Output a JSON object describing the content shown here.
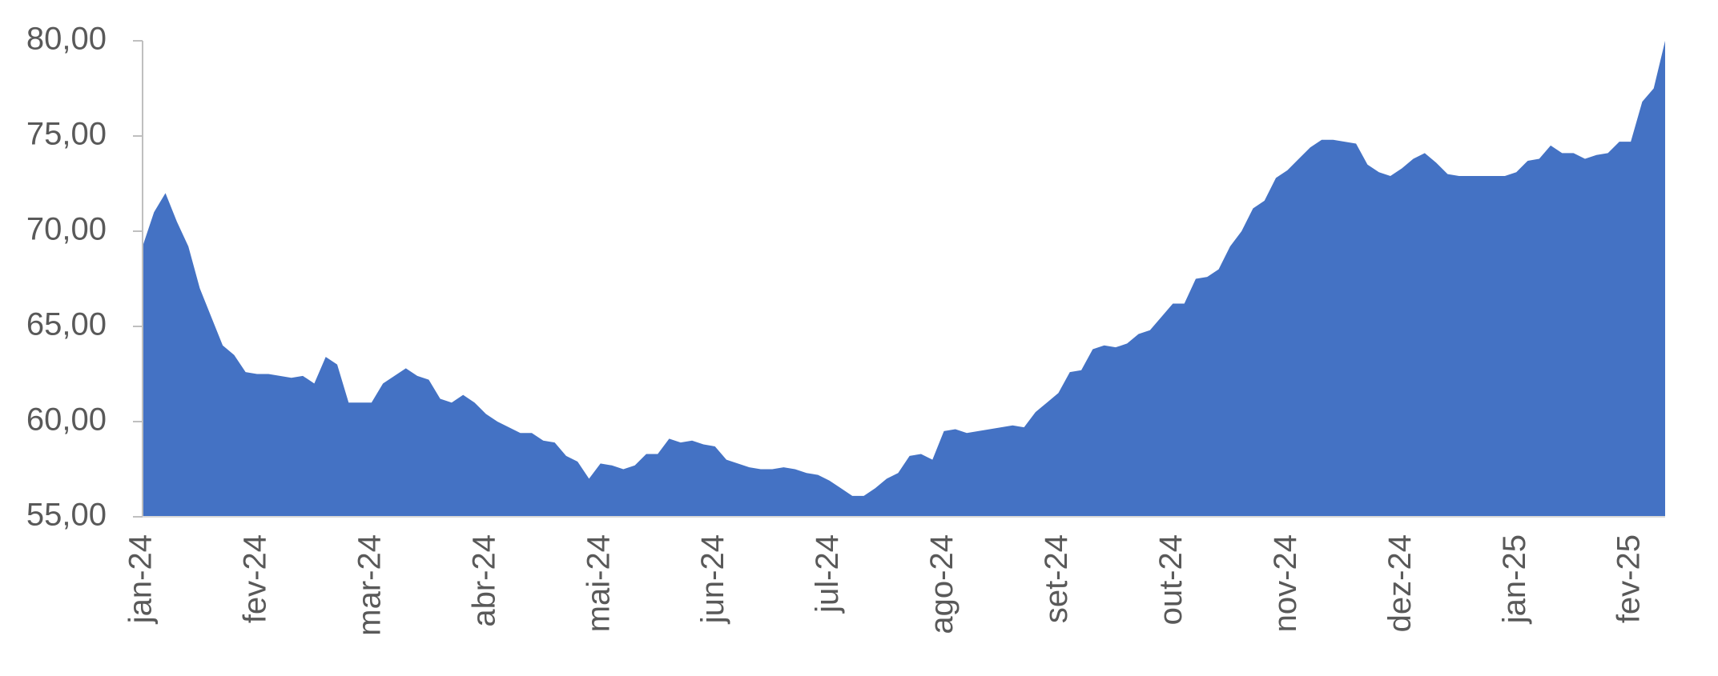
{
  "chart_data": {
    "type": "area",
    "color": "#4472c4",
    "categories": [
      "jan-24",
      null,
      null,
      null,
      null,
      null,
      null,
      null,
      null,
      null,
      "fev-24",
      null,
      null,
      null,
      null,
      null,
      null,
      null,
      null,
      null,
      "mar-24",
      null,
      null,
      null,
      null,
      null,
      null,
      null,
      null,
      null,
      "abr-24",
      null,
      null,
      null,
      null,
      null,
      null,
      null,
      null,
      null,
      "mai-24",
      null,
      null,
      null,
      null,
      null,
      null,
      null,
      null,
      null,
      "jun-24",
      null,
      null,
      null,
      null,
      null,
      null,
      null,
      null,
      null,
      "jul-24",
      null,
      null,
      null,
      null,
      null,
      null,
      null,
      null,
      null,
      "ago-24",
      null,
      null,
      null,
      null,
      null,
      null,
      null,
      null,
      null,
      "set-24",
      null,
      null,
      null,
      null,
      null,
      null,
      null,
      null,
      null,
      "out-24",
      null,
      null,
      null,
      null,
      null,
      null,
      null,
      null,
      null,
      "nov-24",
      null,
      null,
      null,
      null,
      null,
      null,
      null,
      null,
      null,
      "dez-24",
      null,
      null,
      null,
      null,
      null,
      null,
      null,
      null,
      null,
      "jan-25",
      null,
      null,
      null,
      null,
      null,
      null,
      null,
      null,
      null,
      "fev-25",
      null,
      null,
      null
    ],
    "values": [
      69.2,
      71.0,
      72.0,
      70.5,
      69.2,
      67.0,
      65.5,
      64.0,
      63.5,
      62.6,
      62.5,
      62.5,
      62.4,
      62.3,
      62.4,
      62.0,
      63.4,
      63.0,
      61.0,
      61.0,
      61.0,
      62.0,
      62.4,
      62.8,
      62.4,
      62.2,
      61.2,
      61.0,
      61.4,
      61.0,
      60.4,
      60.0,
      59.7,
      59.4,
      59.4,
      59.0,
      58.9,
      58.2,
      57.9,
      57.0,
      57.8,
      57.7,
      57.5,
      57.7,
      58.3,
      58.3,
      59.1,
      58.9,
      59.0,
      58.8,
      58.7,
      58.0,
      57.8,
      57.6,
      57.5,
      57.5,
      57.6,
      57.5,
      57.3,
      57.2,
      56.9,
      56.5,
      56.1,
      56.1,
      56.5,
      57.0,
      57.3,
      58.2,
      58.3,
      58.0,
      59.5,
      59.6,
      59.4,
      59.5,
      59.6,
      59.7,
      59.8,
      59.7,
      60.5,
      61.0,
      61.5,
      62.6,
      62.7,
      63.8,
      64.0,
      63.9,
      64.1,
      64.6,
      64.8,
      65.5,
      66.2,
      66.2,
      67.5,
      67.6,
      68.0,
      69.2,
      70.0,
      71.2,
      71.6,
      72.8,
      73.2,
      73.8,
      74.4,
      74.8,
      74.8,
      74.7,
      74.6,
      73.5,
      73.1,
      72.9,
      73.3,
      73.8,
      74.1,
      73.6,
      73.0,
      72.9,
      72.9,
      72.9,
      72.9,
      72.9,
      73.1,
      73.7,
      73.8,
      74.5,
      74.1,
      74.1,
      73.8,
      74.0,
      74.1,
      74.7,
      74.7,
      76.8,
      77.5,
      80.0
    ],
    "ylim": [
      55,
      80
    ],
    "yticks": [
      {
        "value": 55,
        "label": "55,00"
      },
      {
        "value": 60,
        "label": "60,00"
      },
      {
        "value": 65,
        "label": "65,00"
      },
      {
        "value": 70,
        "label": "70,00"
      },
      {
        "value": 75,
        "label": "75,00"
      },
      {
        "value": 80,
        "label": "80,00"
      }
    ]
  }
}
